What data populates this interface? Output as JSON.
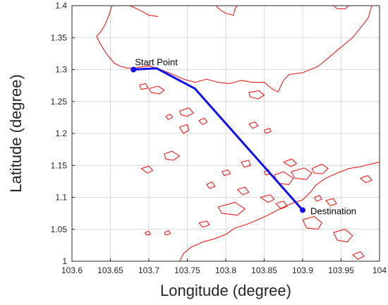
{
  "chart_data": {
    "type": "line",
    "xlabel": "Longitude (degree)",
    "ylabel": "Latitude (degree)",
    "xlim": [
      103.6,
      104
    ],
    "ylim": [
      1,
      1.4
    ],
    "grid": true,
    "x_ticks": [
      "103.6",
      "103.65",
      "103.7",
      "103.75",
      "103.8",
      "103.85",
      "103.9",
      "103.95",
      "104"
    ],
    "y_ticks": [
      "1",
      "1.05",
      "1.1",
      "1.15",
      "1.2",
      "1.25",
      "1.3",
      "1.35",
      "1.4"
    ],
    "route": {
      "color": "#1010ee",
      "points": [
        {
          "x": 103.68,
          "y": 1.3
        },
        {
          "x": 103.71,
          "y": 1.302
        },
        {
          "x": 103.76,
          "y": 1.27
        },
        {
          "x": 103.9,
          "y": 1.08
        }
      ]
    },
    "markers": [
      {
        "label": "Start Point",
        "x": 103.68,
        "y": 1.3
      },
      {
        "label": "Destination",
        "x": 103.9,
        "y": 1.08
      }
    ],
    "coastline_color": "#ee1c1c",
    "coastlines": [
      [
        [
          103.652,
          1.4
        ],
        [
          103.648,
          1.385
        ],
        [
          103.643,
          1.37
        ],
        [
          103.638,
          1.36
        ],
        [
          103.632,
          1.352
        ],
        [
          103.636,
          1.342
        ],
        [
          103.642,
          1.33
        ],
        [
          103.648,
          1.32
        ],
        [
          103.655,
          1.31
        ],
        [
          103.663,
          1.305
        ],
        [
          103.673,
          1.302
        ],
        [
          103.685,
          1.303
        ],
        [
          103.7,
          1.306
        ],
        [
          103.715,
          1.3
        ],
        [
          103.73,
          1.293
        ],
        [
          103.745,
          1.285
        ],
        [
          103.76,
          1.28
        ],
        [
          103.775,
          1.285
        ],
        [
          103.79,
          1.28
        ],
        [
          103.805,
          1.278
        ],
        [
          103.82,
          1.283
        ],
        [
          103.835,
          1.28
        ],
        [
          103.85,
          1.28
        ],
        [
          103.86,
          1.27
        ],
        [
          103.868,
          1.265
        ],
        [
          103.875,
          1.283
        ],
        [
          103.882,
          1.292
        ],
        [
          103.9,
          1.295
        ],
        [
          103.92,
          1.305
        ],
        [
          103.935,
          1.32
        ],
        [
          103.95,
          1.335
        ],
        [
          103.965,
          1.35
        ],
        [
          103.975,
          1.365
        ],
        [
          103.985,
          1.38
        ],
        [
          103.99,
          1.4
        ]
      ],
      [
        [
          103.675,
          1.4
        ],
        [
          103.688,
          1.393
        ],
        [
          103.7,
          1.385
        ],
        [
          103.712,
          1.383
        ]
      ],
      [
        [
          103.787,
          1.4
        ],
        [
          103.793,
          1.393
        ],
        [
          103.8,
          1.388
        ],
        [
          103.81,
          1.385
        ],
        [
          103.812,
          1.395
        ],
        [
          103.815,
          1.4
        ]
      ],
      [
        [
          103.94,
          1.4
        ],
        [
          103.945,
          1.395
        ],
        [
          103.955,
          1.395
        ],
        [
          103.96,
          1.4
        ]
      ],
      [
        [
          103.7,
          1.27
        ],
        [
          103.712,
          1.274
        ],
        [
          103.72,
          1.268
        ],
        [
          103.714,
          1.262
        ],
        [
          103.703,
          1.264
        ],
        [
          103.7,
          1.27
        ]
      ],
      [
        [
          103.688,
          1.276
        ],
        [
          103.696,
          1.278
        ],
        [
          103.699,
          1.271
        ],
        [
          103.69,
          1.269
        ],
        [
          103.688,
          1.276
        ]
      ],
      [
        [
          103.83,
          1.264
        ],
        [
          103.843,
          1.267
        ],
        [
          103.85,
          1.26
        ],
        [
          103.842,
          1.254
        ],
        [
          103.832,
          1.257
        ],
        [
          103.83,
          1.264
        ]
      ],
      [
        [
          103.74,
          1.235
        ],
        [
          103.752,
          1.24
        ],
        [
          103.758,
          1.232
        ],
        [
          103.75,
          1.227
        ],
        [
          103.742,
          1.229
        ],
        [
          103.74,
          1.235
        ]
      ],
      [
        [
          103.722,
          1.227
        ],
        [
          103.728,
          1.23
        ],
        [
          103.731,
          1.225
        ],
        [
          103.725,
          1.222
        ],
        [
          103.722,
          1.227
        ]
      ],
      [
        [
          103.74,
          1.21
        ],
        [
          103.75,
          1.214
        ],
        [
          103.752,
          1.205
        ],
        [
          103.745,
          1.2
        ],
        [
          103.742,
          1.205
        ],
        [
          103.74,
          1.21
        ]
      ],
      [
        [
          103.765,
          1.22
        ],
        [
          103.772,
          1.224
        ],
        [
          103.776,
          1.218
        ],
        [
          103.77,
          1.214
        ],
        [
          103.765,
          1.22
        ]
      ],
      [
        [
          103.72,
          1.168
        ],
        [
          103.73,
          1.172
        ],
        [
          103.74,
          1.165
        ],
        [
          103.732,
          1.158
        ],
        [
          103.722,
          1.16
        ],
        [
          103.72,
          1.168
        ]
      ],
      [
        [
          103.69,
          1.145
        ],
        [
          103.7,
          1.149
        ],
        [
          103.705,
          1.142
        ],
        [
          103.698,
          1.138
        ],
        [
          103.69,
          1.145
        ]
      ],
      [
        [
          103.83,
          1.215
        ],
        [
          103.838,
          1.218
        ],
        [
          103.842,
          1.212
        ],
        [
          103.835,
          1.208
        ],
        [
          103.83,
          1.215
        ]
      ],
      [
        [
          103.85,
          1.205
        ],
        [
          103.857,
          1.208
        ],
        [
          103.859,
          1.203
        ],
        [
          103.852,
          1.2
        ],
        [
          103.85,
          1.205
        ]
      ],
      [
        [
          103.863,
          1.135
        ],
        [
          103.875,
          1.14
        ],
        [
          103.888,
          1.13
        ],
        [
          103.882,
          1.12
        ],
        [
          103.868,
          1.122
        ],
        [
          103.863,
          1.135
        ]
      ],
      [
        [
          103.875,
          1.155
        ],
        [
          103.886,
          1.16
        ],
        [
          103.892,
          1.153
        ],
        [
          103.885,
          1.148
        ],
        [
          103.875,
          1.155
        ]
      ],
      [
        [
          103.885,
          1.14
        ],
        [
          103.902,
          1.146
        ],
        [
          103.912,
          1.138
        ],
        [
          103.905,
          1.128
        ],
        [
          103.89,
          1.13
        ],
        [
          103.885,
          1.14
        ]
      ],
      [
        [
          103.912,
          1.145
        ],
        [
          103.925,
          1.152
        ],
        [
          103.933,
          1.145
        ],
        [
          103.926,
          1.137
        ],
        [
          103.915,
          1.138
        ],
        [
          103.912,
          1.145
        ]
      ],
      [
        [
          103.82,
          1.155
        ],
        [
          103.83,
          1.158
        ],
        [
          103.832,
          1.15
        ],
        [
          103.824,
          1.147
        ],
        [
          103.82,
          1.155
        ]
      ],
      [
        [
          103.795,
          1.14
        ],
        [
          103.803,
          1.143
        ],
        [
          103.806,
          1.137
        ],
        [
          103.798,
          1.134
        ],
        [
          103.795,
          1.14
        ]
      ],
      [
        [
          103.85,
          1.14
        ],
        [
          103.856,
          1.143
        ],
        [
          103.858,
          1.137
        ],
        [
          103.852,
          1.135
        ],
        [
          103.85,
          1.14
        ]
      ],
      [
        [
          103.775,
          1.12
        ],
        [
          103.782,
          1.124
        ],
        [
          103.786,
          1.117
        ],
        [
          103.779,
          1.114
        ],
        [
          103.775,
          1.12
        ]
      ],
      [
        [
          103.815,
          1.112
        ],
        [
          103.825,
          1.116
        ],
        [
          103.83,
          1.108
        ],
        [
          103.822,
          1.104
        ],
        [
          103.815,
          1.112
        ]
      ],
      [
        [
          103.79,
          1.085
        ],
        [
          103.812,
          1.092
        ],
        [
          103.825,
          1.082
        ],
        [
          103.815,
          1.072
        ],
        [
          103.795,
          1.075
        ],
        [
          103.79,
          1.085
        ]
      ],
      [
        [
          103.845,
          1.1
        ],
        [
          103.858,
          1.104
        ],
        [
          103.863,
          1.097
        ],
        [
          103.855,
          1.092
        ],
        [
          103.845,
          1.1
        ]
      ],
      [
        [
          103.865,
          1.09
        ],
        [
          103.875,
          1.094
        ],
        [
          103.88,
          1.086
        ],
        [
          103.872,
          1.082
        ],
        [
          103.865,
          1.09
        ]
      ],
      [
        [
          103.93,
          1.095
        ],
        [
          103.94,
          1.098
        ],
        [
          103.944,
          1.09
        ],
        [
          103.936,
          1.087
        ],
        [
          103.93,
          1.095
        ]
      ],
      [
        [
          103.915,
          1.1
        ],
        [
          103.922,
          1.103
        ],
        [
          103.925,
          1.097
        ],
        [
          103.918,
          1.094
        ],
        [
          103.915,
          1.1
        ]
      ],
      [
        [
          103.975,
          1.13
        ],
        [
          103.985,
          1.134
        ],
        [
          103.99,
          1.127
        ],
        [
          103.982,
          1.123
        ],
        [
          103.975,
          1.13
        ]
      ],
      [
        [
          103.765,
          1.06
        ],
        [
          103.775,
          1.063
        ],
        [
          103.779,
          1.057
        ],
        [
          103.77,
          1.053
        ],
        [
          103.765,
          1.06
        ]
      ],
      [
        [
          103.72,
          1.045
        ],
        [
          103.726,
          1.048
        ],
        [
          103.728,
          1.043
        ],
        [
          103.722,
          1.041
        ],
        [
          103.72,
          1.045
        ]
      ],
      [
        [
          103.695,
          1.045
        ],
        [
          103.7,
          1.047
        ],
        [
          103.702,
          1.042
        ],
        [
          103.697,
          1.041
        ],
        [
          103.695,
          1.045
        ]
      ],
      [
        [
          103.74,
          1.0
        ],
        [
          103.745,
          1.012
        ],
        [
          103.755,
          1.022
        ],
        [
          103.77,
          1.03
        ],
        [
          103.785,
          1.035
        ],
        [
          103.8,
          1.042
        ],
        [
          103.812,
          1.052
        ],
        [
          103.828,
          1.058
        ],
        [
          103.842,
          1.065
        ],
        [
          103.858,
          1.074
        ],
        [
          103.872,
          1.083
        ],
        [
          103.885,
          1.09
        ],
        [
          103.9,
          1.096
        ],
        [
          103.91,
          1.108
        ],
        [
          103.918,
          1.12
        ],
        [
          103.93,
          1.13
        ],
        [
          103.945,
          1.138
        ],
        [
          103.96,
          1.145
        ],
        [
          103.975,
          1.148
        ],
        [
          103.988,
          1.152
        ],
        [
          104.0,
          1.155
        ]
      ],
      [
        [
          103.9,
          1.065
        ],
        [
          103.915,
          1.07
        ],
        [
          103.925,
          1.06
        ],
        [
          103.92,
          1.05
        ],
        [
          103.905,
          1.052
        ],
        [
          103.9,
          1.065
        ]
      ],
      [
        [
          103.94,
          1.045
        ],
        [
          103.955,
          1.05
        ],
        [
          103.965,
          1.04
        ],
        [
          103.958,
          1.03
        ],
        [
          103.945,
          1.033
        ],
        [
          103.94,
          1.045
        ]
      ],
      [
        [
          103.965,
          1.01
        ],
        [
          103.975,
          1.015
        ],
        [
          103.98,
          1.008
        ],
        [
          103.972,
          1.003
        ],
        [
          103.965,
          1.01
        ]
      ]
    ]
  }
}
